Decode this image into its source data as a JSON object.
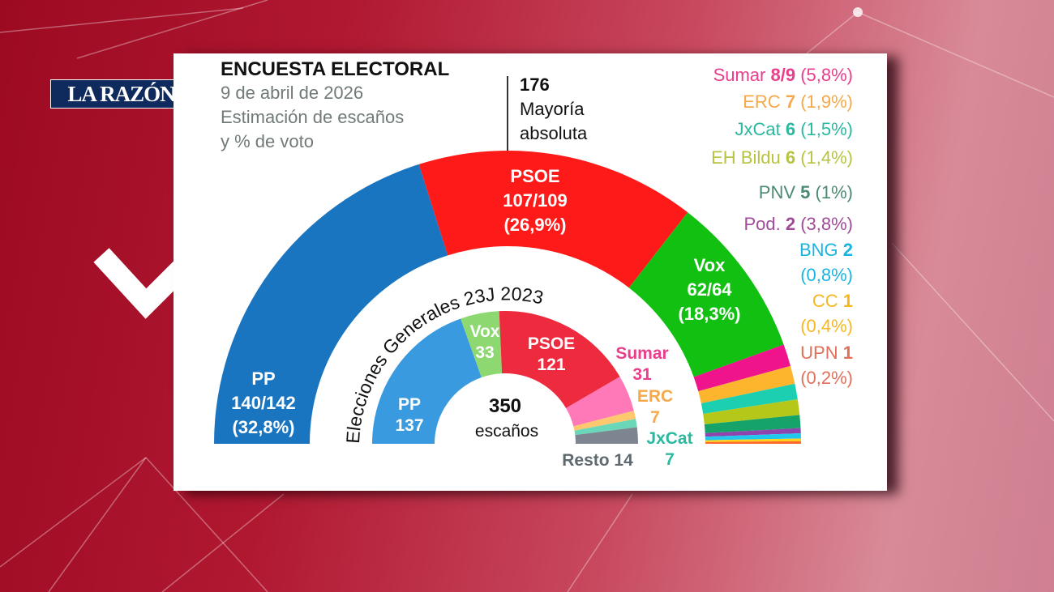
{
  "logo": "LA RAZÓN",
  "header": {
    "title": "ENCUESTA ELECTORAL",
    "date": "9 de abril de 2026",
    "subtitle_1": "Estimación de escaños",
    "subtitle_2": "y % de voto"
  },
  "majority": {
    "value": "176",
    "label_1": "Mayoría",
    "label_2": "absoluta"
  },
  "chart_data": [
    {
      "type": "pie",
      "shape": "semicircle",
      "title": "Estimación de escaños y % de voto",
      "date": "9 de abril de 2026",
      "series": [
        {
          "name": "PP",
          "seats": "140/142",
          "seats_low": 140,
          "seats_high": 142,
          "pct": "(32,8%)",
          "pct_value": 32.8,
          "color": "#1a75c0",
          "text_color": "#ffffff"
        },
        {
          "name": "PSOE",
          "seats": "107/109",
          "seats_low": 107,
          "seats_high": 109,
          "pct": "(26,9%)",
          "pct_value": 26.9,
          "color": "#ff1a1a",
          "text_color": "#ffffff"
        },
        {
          "name": "Vox",
          "seats": "62/64",
          "seats_low": 62,
          "seats_high": 64,
          "pct": "(18,3%)",
          "pct_value": 18.3,
          "color": "#12c012",
          "text_color": "#ffffff"
        },
        {
          "name": "Sumar",
          "seats": "8/9",
          "seats_low": 8,
          "seats_high": 9,
          "pct": "(5,8%)",
          "pct_value": 5.8,
          "color": "#f0148c",
          "text_color": "#e83e8c"
        },
        {
          "name": "ERC",
          "seats": "7",
          "seats_low": 7,
          "seats_high": 7,
          "pct": "(1,9%)",
          "pct_value": 1.9,
          "color": "#fdb52e",
          "text_color": "#f5a94a"
        },
        {
          "name": "JxCat",
          "seats": "6",
          "seats_low": 6,
          "seats_high": 6,
          "pct": "(1,5%)",
          "pct_value": 1.5,
          "color": "#1ccfb0",
          "text_color": "#2bb8a0"
        },
        {
          "name": "EH Bildu",
          "seats": "6",
          "seats_low": 6,
          "seats_high": 6,
          "pct": "(1,4%)",
          "pct_value": 1.4,
          "color": "#b5c81a",
          "text_color": "#b8c440"
        },
        {
          "name": "PNV",
          "seats": "5",
          "seats_low": 5,
          "seats_high": 5,
          "pct": "(1%)",
          "pct_value": 1,
          "color": "#16a36a",
          "text_color": "#4a8a70"
        },
        {
          "name": "Pod.",
          "seats": "2",
          "seats_low": 2,
          "seats_high": 2,
          "pct": "(3,8%)",
          "pct_value": 3.8,
          "color": "#8e44ad",
          "text_color": "#a04a98"
        },
        {
          "name": "BNG",
          "seats": "2",
          "seats_low": 2,
          "seats_high": 2,
          "pct": "(0,8%)",
          "pct_value": 0.8,
          "color": "#20c8ee",
          "text_color": "#19b5e0"
        },
        {
          "name": "CC",
          "seats": "1",
          "seats_low": 1,
          "seats_high": 1,
          "pct": "(0,4%)",
          "pct_value": 0.4,
          "color": "#ffd21a",
          "text_color": "#f5b820"
        },
        {
          "name": "UPN",
          "seats": "1",
          "seats_low": 1,
          "seats_high": 1,
          "pct": "(0,2%)",
          "pct_value": 0.2,
          "color": "#ff6a2a",
          "text_color": "#e0705a"
        }
      ]
    },
    {
      "type": "pie",
      "shape": "semicircle",
      "title": "Elecciones Generales 23J 2023",
      "total": "350",
      "total_label": "escaños",
      "series": [
        {
          "name": "PP",
          "seats": 137,
          "color": "#3a9ae0",
          "text_color": "#ffffff"
        },
        {
          "name": "Vox",
          "seats": 33,
          "color": "#8ed872",
          "text_color": "#ffffff"
        },
        {
          "name": "PSOE",
          "seats": 121,
          "color": "#ee2a3e",
          "text_color": "#ffffff"
        },
        {
          "name": "Sumar",
          "seats": 31,
          "color": "#ff78b8",
          "text_color": "#e83e8c"
        },
        {
          "name": "ERC",
          "seats": 7,
          "color": "#ffc86e",
          "text_color": "#f5a94a"
        },
        {
          "name": "JxCat",
          "seats": 7,
          "color": "#6ad8b8",
          "text_color": "#2bb8a0"
        },
        {
          "name": "Resto",
          "seats": 14,
          "label": "Resto 14",
          "color": "#7d8590",
          "text_color": "#5f6a70"
        }
      ]
    }
  ]
}
